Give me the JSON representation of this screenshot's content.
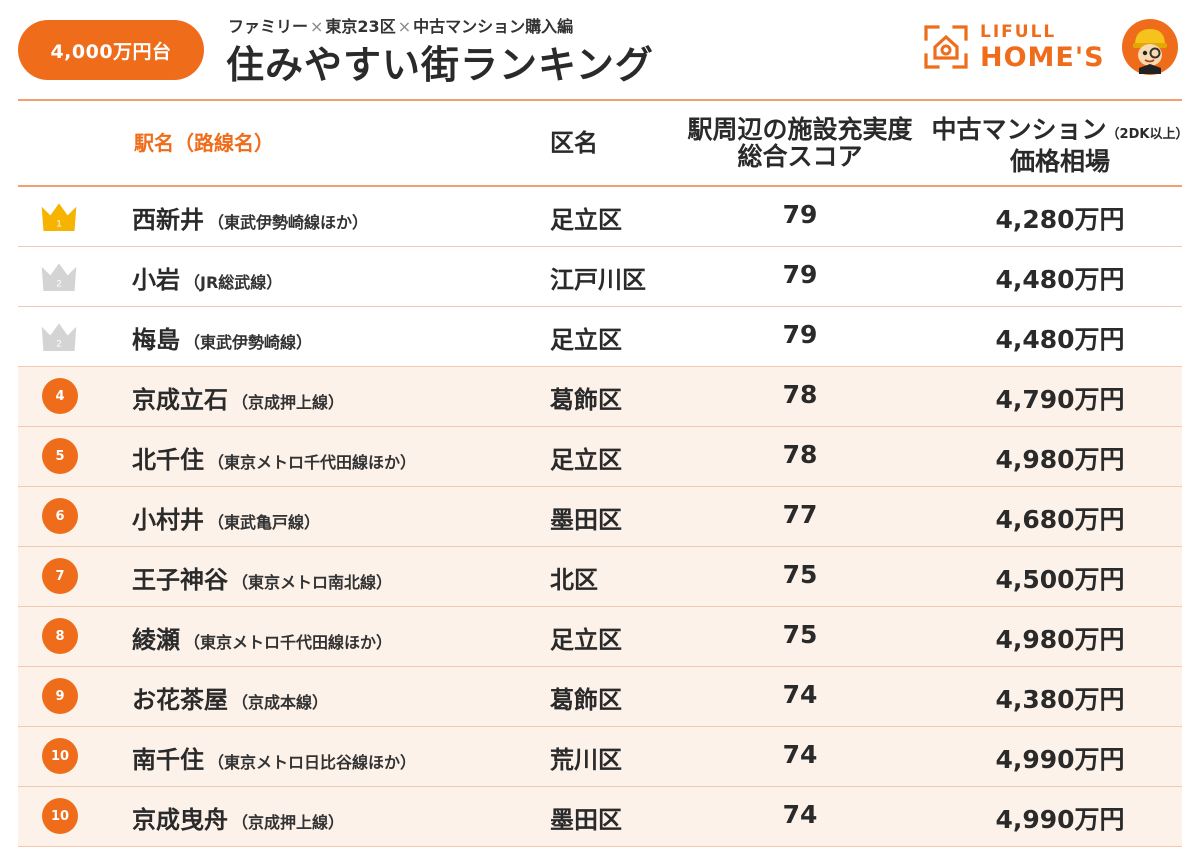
{
  "header": {
    "badge": "4,000万円台",
    "subtitle_parts": [
      "ファミリー",
      "×",
      "東京23区",
      "×",
      "中古マンション購入編"
    ],
    "title": "住みやすい街ランキング",
    "logo_line1": "LIFULL",
    "logo_line2": "HOME'S"
  },
  "colors": {
    "accent": "#ef6c1a",
    "gold": "#f6b400",
    "silver": "#d4d4d4",
    "row_tint": "#fdf2ea"
  },
  "columns": {
    "station": "駅名（路線名）",
    "ward": "区名",
    "score_line1": "駅周辺の施設充実度",
    "score_line2": "総合スコア",
    "price_line1": "中古マンション",
    "price_note": "（2DK以上）",
    "price_line2": "価格相場"
  },
  "rows": [
    {
      "rank": "1",
      "rank_style": "gold-crown",
      "name": "西新井",
      "line": "（東武伊勢崎線ほか）",
      "ward": "足立区",
      "score": "79",
      "price": "4,280万円"
    },
    {
      "rank": "2",
      "rank_style": "silver-crown",
      "name": "小岩",
      "line": "（JR総武線）",
      "ward": "江戸川区",
      "score": "79",
      "price": "4,480万円"
    },
    {
      "rank": "2",
      "rank_style": "silver-crown",
      "name": "梅島",
      "line": "（東武伊勢崎線）",
      "ward": "足立区",
      "score": "79",
      "price": "4,480万円"
    },
    {
      "rank": "4",
      "rank_style": "circle",
      "name": "京成立石",
      "line": "（京成押上線）",
      "ward": "葛飾区",
      "score": "78",
      "price": "4,790万円"
    },
    {
      "rank": "5",
      "rank_style": "circle",
      "name": "北千住",
      "line": "（東京メトロ千代田線ほか）",
      "ward": "足立区",
      "score": "78",
      "price": "4,980万円"
    },
    {
      "rank": "6",
      "rank_style": "circle",
      "name": "小村井",
      "line": "（東武亀戸線）",
      "ward": "墨田区",
      "score": "77",
      "price": "4,680万円"
    },
    {
      "rank": "7",
      "rank_style": "circle",
      "name": "王子神谷",
      "line": "（東京メトロ南北線）",
      "ward": "北区",
      "score": "75",
      "price": "4,500万円"
    },
    {
      "rank": "8",
      "rank_style": "circle",
      "name": "綾瀬",
      "line": "（東京メトロ千代田線ほか）",
      "ward": "足立区",
      "score": "75",
      "price": "4,980万円"
    },
    {
      "rank": "9",
      "rank_style": "circle",
      "name": "お花茶屋",
      "line": "（京成本線）",
      "ward": "葛飾区",
      "score": "74",
      "price": "4,380万円"
    },
    {
      "rank": "10",
      "rank_style": "circle",
      "name": "南千住",
      "line": "（東京メトロ日比谷線ほか）",
      "ward": "荒川区",
      "score": "74",
      "price": "4,990万円"
    },
    {
      "rank": "10",
      "rank_style": "circle",
      "name": "京成曳舟",
      "line": "（京成押上線）",
      "ward": "墨田区",
      "score": "74",
      "price": "4,990万円"
    }
  ]
}
